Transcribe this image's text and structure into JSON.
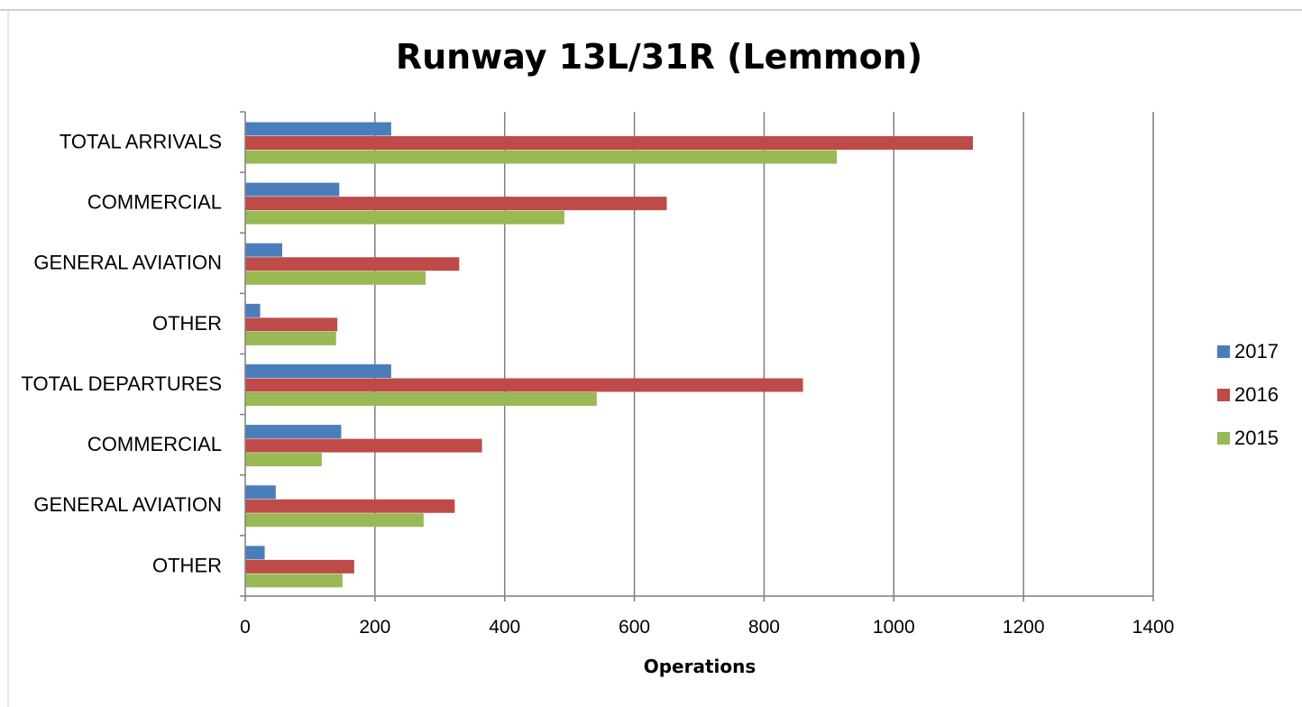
{
  "chart_data": {
    "type": "bar",
    "orientation": "horizontal",
    "title": "Runway 13L/31R (Lemmon)",
    "xlabel": "Operations",
    "ylabel": "",
    "xlim": [
      0,
      1400
    ],
    "x_ticks": [
      "0",
      "200",
      "400",
      "600",
      "800",
      "1000",
      "1200",
      "1400"
    ],
    "x_tick_values": [
      0,
      200,
      400,
      600,
      800,
      1000,
      1200,
      1400
    ],
    "grid": "vertical major gridlines",
    "legend_position": "right",
    "categories": [
      "TOTAL ARRIVALS",
      "COMMERCIAL",
      "GENERAL AVIATION",
      "OTHER",
      "TOTAL DEPARTURES",
      "COMMERCIAL",
      "GENERAL AVIATION",
      "OTHER"
    ],
    "series": [
      {
        "name": "2017",
        "color": "#4a7ebb",
        "values": [
          225,
          145,
          57,
          23,
          225,
          148,
          47,
          30
        ]
      },
      {
        "name": "2016",
        "color": "#be4b48",
        "values": [
          1122,
          650,
          330,
          142,
          860,
          365,
          323,
          168
        ]
      },
      {
        "name": "2015",
        "color": "#98b954",
        "values": [
          912,
          492,
          278,
          140,
          542,
          118,
          275,
          150
        ]
      }
    ]
  }
}
